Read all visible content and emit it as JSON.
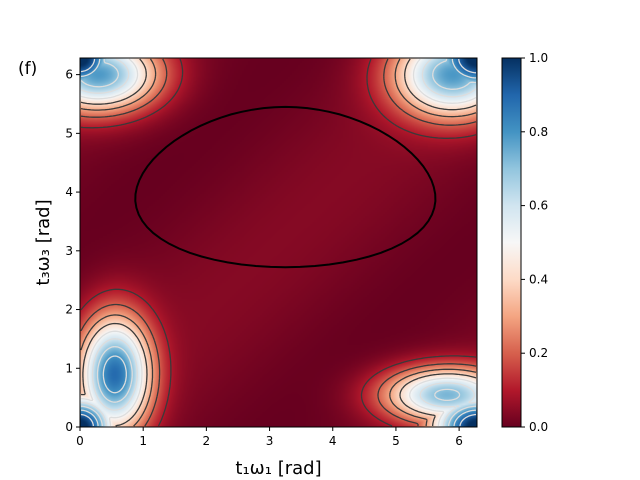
{
  "panel_label": "(f)",
  "chart_data": {
    "type": "heatmap",
    "title": "",
    "xlabel": "t₁ω₁ [rad]",
    "ylabel": "t₃ω₃ [rad]",
    "xlim": [
      0,
      6.283
    ],
    "ylim": [
      0,
      6.283
    ],
    "x_ticks": [
      0,
      1,
      2,
      3,
      4,
      5,
      6
    ],
    "y_ticks": [
      0,
      1,
      2,
      3,
      4,
      5,
      6
    ],
    "colormap": "RdBu",
    "colorbar": {
      "range": [
        0.0,
        1.0
      ],
      "ticks": [
        0.0,
        0.2,
        0.4,
        0.6,
        0.8,
        1.0
      ],
      "tick_labels": [
        "0.0",
        "0.2",
        "0.4",
        "0.6",
        "0.8",
        "1.0"
      ]
    },
    "contour_levels": [
      0.1,
      0.2,
      0.3,
      0.4,
      0.5,
      0.6,
      0.7,
      0.8,
      0.9
    ],
    "zero_region_outline": {
      "description_value_level": 0.0,
      "x_range": [
        0.9,
        5.6
      ],
      "y_range": [
        2.72,
        5.45
      ]
    },
    "peaks": [
      {
        "x": 0.0,
        "y": 0.0,
        "value": 1.0
      },
      {
        "x": 6.283,
        "y": 0.0,
        "value": 1.0
      },
      {
        "x": 0.0,
        "y": 6.283,
        "value": 1.0
      },
      {
        "x": 6.283,
        "y": 6.283,
        "value": 1.0
      },
      {
        "x": 0.6,
        "y": 1.0,
        "value": 0.85
      },
      {
        "x": 5.7,
        "y": 0.6,
        "value": 0.7
      }
    ],
    "grid": false
  }
}
